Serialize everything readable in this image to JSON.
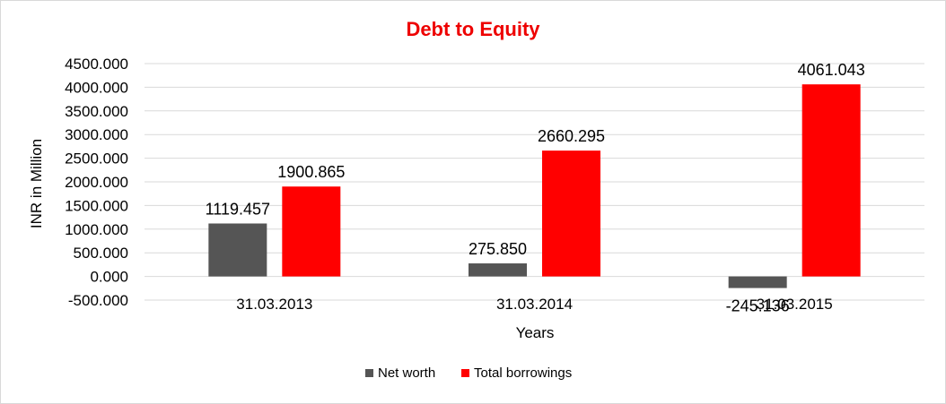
{
  "chart_data": {
    "type": "bar",
    "title": "Debt to Equity",
    "title_color": "#ee0000",
    "xlabel": "Years",
    "ylabel": "INR in Million",
    "categories": [
      "31.03.2013",
      "31.03.2014",
      "31.03.2015"
    ],
    "series": [
      {
        "name": "Net worth",
        "color": "#555555",
        "values": [
          1119.457,
          275.85,
          -245.136
        ],
        "labels": [
          "1119.457",
          "275.850",
          "-245.136"
        ]
      },
      {
        "name": "Total borrowings",
        "color": "#ff0000",
        "values": [
          1900.865,
          2660.295,
          4061.043
        ],
        "labels": [
          "1900.865",
          "2660.295",
          "4061.043"
        ]
      }
    ],
    "ylim": [
      -500,
      4500
    ],
    "yticks": [
      {
        "value": 4500,
        "label": "4500.000"
      },
      {
        "value": 4000,
        "label": "4000.000"
      },
      {
        "value": 3500,
        "label": "3500.000"
      },
      {
        "value": 3000,
        "label": "3000.000"
      },
      {
        "value": 2500,
        "label": "2500.000"
      },
      {
        "value": 2000,
        "label": "2000.000"
      },
      {
        "value": 1500,
        "label": "1500.000"
      },
      {
        "value": 1000,
        "label": "1000.000"
      },
      {
        "value": 500,
        "label": "500.000"
      },
      {
        "value": 0,
        "label": "0.000"
      },
      {
        "value": -500,
        "label": "-500.000"
      }
    ],
    "grid": true,
    "legend_position": "bottom"
  }
}
